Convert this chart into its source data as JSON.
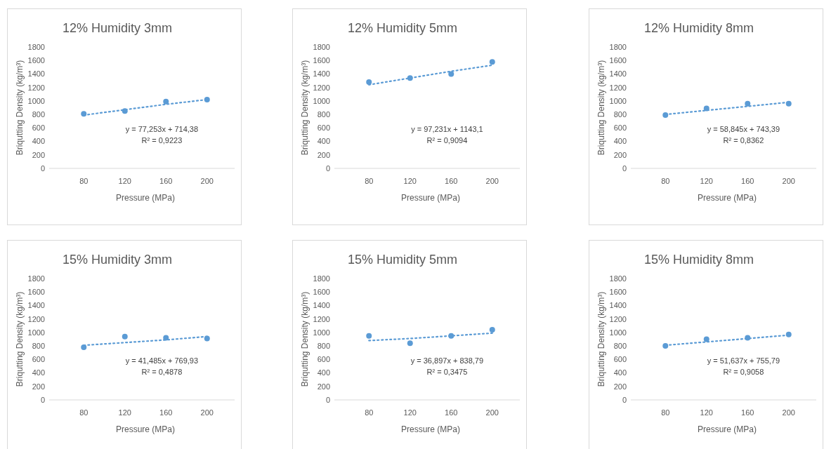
{
  "chart_data": [
    {
      "type": "scatter",
      "title": "12% Humidity 3mm",
      "xlabel": "Pressure (MPa)",
      "ylabel": "Briqutting Density (kg/m³)",
      "categories": [
        "80",
        "120",
        "160",
        "200"
      ],
      "ylim": [
        0,
        1800
      ],
      "yticks": [
        0,
        200,
        400,
        600,
        800,
        1000,
        1200,
        1400,
        1600,
        1800
      ],
      "annotations": [
        "y = 77,253x + 714,38",
        "R² = 0,9223"
      ],
      "series": [
        {
          "color": "#5b9bd5",
          "marker": "circle",
          "values": [
            810,
            850,
            990,
            1020
          ]
        },
        {
          "type": "line",
          "color": "#5b9bd5",
          "marker": "none",
          "line_style": "dotted",
          "values": [
            790,
            870,
            950,
            1020
          ]
        }
      ]
    },
    {
      "type": "scatter",
      "title": "12% Humidity 5mm",
      "xlabel": "Pressure (MPa)",
      "ylabel": "Briqutting Density (kg/m³)",
      "categories": [
        "80",
        "120",
        "160",
        "200"
      ],
      "ylim": [
        0,
        1800
      ],
      "yticks": [
        0,
        200,
        400,
        600,
        800,
        1000,
        1200,
        1400,
        1600,
        1800
      ],
      "annotations": [
        "y = 97,231x + 1143,1",
        "R² = 0,9094"
      ],
      "series": [
        {
          "color": "#5b9bd5",
          "marker": "circle",
          "values": [
            1280,
            1340,
            1400,
            1580
          ]
        },
        {
          "type": "line",
          "color": "#5b9bd5",
          "marker": "none",
          "line_style": "dotted",
          "values": [
            1240,
            1340,
            1440,
            1530
          ]
        }
      ]
    },
    {
      "type": "scatter",
      "title": "12% Humidity 8mm",
      "xlabel": "Pressure (MPa)",
      "ylabel": "Briqutting Density (kg/m³)",
      "categories": [
        "80",
        "120",
        "160",
        "200"
      ],
      "ylim": [
        0,
        1800
      ],
      "yticks": [
        0,
        200,
        400,
        600,
        800,
        1000,
        1200,
        1400,
        1600,
        1800
      ],
      "annotations": [
        "y = 58,845x + 743,39",
        "R² = 0,8362"
      ],
      "series": [
        {
          "color": "#5b9bd5",
          "marker": "circle",
          "values": [
            790,
            890,
            960,
            960
          ]
        },
        {
          "type": "line",
          "color": "#5b9bd5",
          "marker": "none",
          "line_style": "dotted",
          "values": [
            800,
            860,
            920,
            980
          ]
        }
      ]
    },
    {
      "type": "scatter",
      "title": "15% Humidity 3mm",
      "xlabel": "Pressure (MPa)",
      "ylabel": "Briqutting Density (kg/m³)",
      "categories": [
        "80",
        "120",
        "160",
        "200"
      ],
      "ylim": [
        0,
        1800
      ],
      "yticks": [
        0,
        200,
        400,
        600,
        800,
        1000,
        1200,
        1400,
        1600,
        1800
      ],
      "annotations": [
        "y = 41,485x + 769,93",
        "R² = 0,4878"
      ],
      "series": [
        {
          "color": "#5b9bd5",
          "marker": "circle",
          "values": [
            780,
            940,
            920,
            910
          ]
        },
        {
          "type": "line",
          "color": "#5b9bd5",
          "marker": "none",
          "line_style": "dotted",
          "values": [
            810,
            850,
            890,
            940
          ]
        }
      ]
    },
    {
      "type": "scatter",
      "title": "15% Humidity 5mm",
      "xlabel": "Pressure (MPa)",
      "ylabel": "Briqutting Density (kg/m³)",
      "categories": [
        "80",
        "120",
        "160",
        "200"
      ],
      "ylim": [
        0,
        1800
      ],
      "yticks": [
        0,
        200,
        400,
        600,
        800,
        1000,
        1200,
        1400,
        1600,
        1800
      ],
      "annotations": [
        "y = 36,897x + 838,79",
        "R² = 0,3475"
      ],
      "series": [
        {
          "color": "#5b9bd5",
          "marker": "circle",
          "values": [
            950,
            840,
            950,
            1040
          ]
        },
        {
          "type": "line",
          "color": "#5b9bd5",
          "marker": "none",
          "line_style": "dotted",
          "values": [
            880,
            910,
            950,
            990
          ]
        }
      ]
    },
    {
      "type": "scatter",
      "title": "15% Humidity 8mm",
      "xlabel": "Pressure (MPa)",
      "ylabel": "Briqutting Density (kg/m³)",
      "categories": [
        "80",
        "120",
        "160",
        "200"
      ],
      "ylim": [
        0,
        1800
      ],
      "yticks": [
        0,
        200,
        400,
        600,
        800,
        1000,
        1200,
        1400,
        1600,
        1800
      ],
      "annotations": [
        "y = 51,637x + 755,79",
        "R² = 0,9058"
      ],
      "series": [
        {
          "color": "#5b9bd5",
          "marker": "circle",
          "values": [
            800,
            900,
            920,
            970
          ]
        },
        {
          "type": "line",
          "color": "#5b9bd5",
          "marker": "none",
          "line_style": "dotted",
          "values": [
            810,
            860,
            910,
            960
          ]
        }
      ]
    }
  ]
}
